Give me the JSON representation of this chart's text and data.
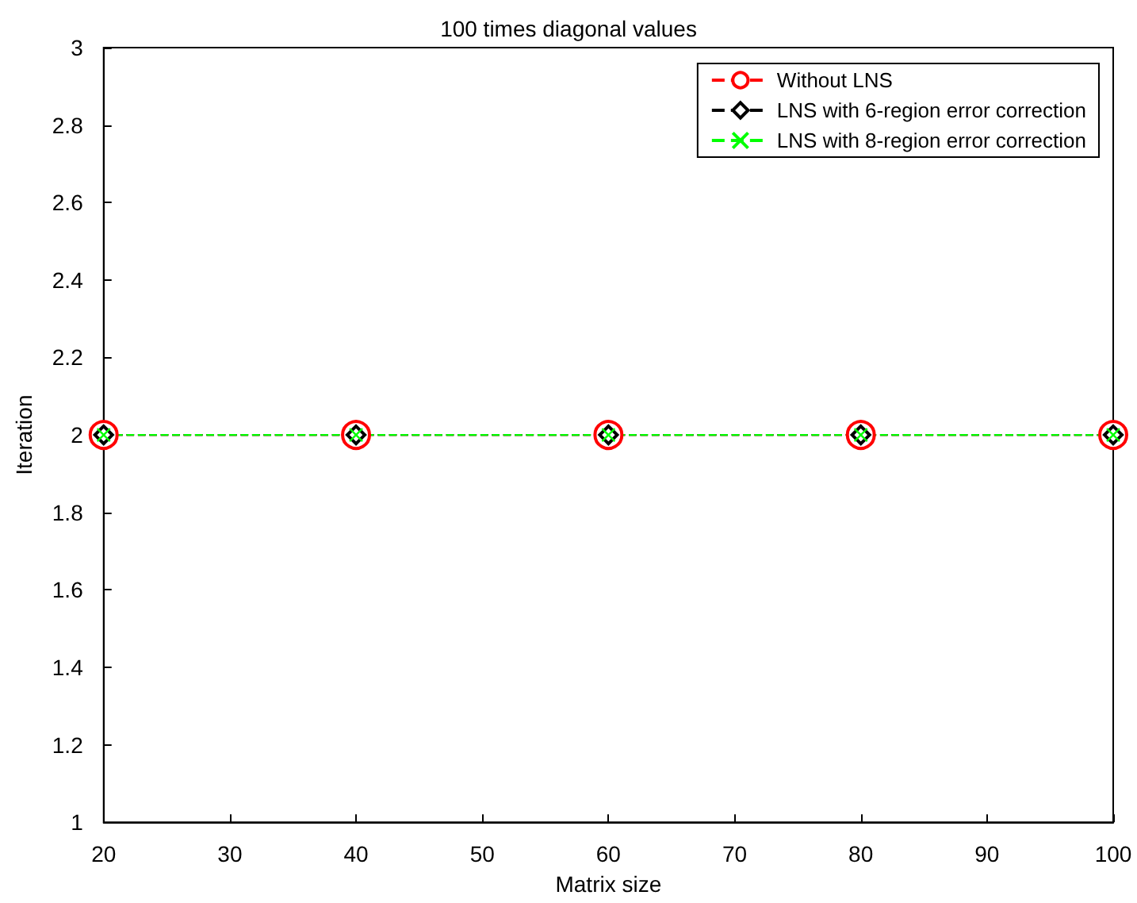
{
  "chart_data": {
    "type": "line",
    "title": "100 times diagonal values",
    "xlabel": "Matrix size",
    "ylabel": "Iteration",
    "x": [
      20,
      40,
      60,
      80,
      100
    ],
    "series": [
      {
        "name": "Without LNS",
        "color": "#ff0000",
        "values": [
          2,
          2,
          2,
          2,
          2
        ],
        "marker": "circle"
      },
      {
        "name": "LNS with 6-region error correction",
        "color": "#000000",
        "values": [
          2,
          2,
          2,
          2,
          2
        ],
        "marker": "diamond"
      },
      {
        "name": "LNS with 8-region error correction",
        "color": "#00ff00",
        "values": [
          2,
          2,
          2,
          2,
          2
        ],
        "marker": "cross"
      }
    ],
    "xlim": [
      20,
      100
    ],
    "xticks": [
      20,
      30,
      40,
      50,
      60,
      70,
      80,
      90,
      100
    ],
    "ylim": [
      1,
      3
    ],
    "yticks": [
      1,
      1.2,
      1.4,
      1.6,
      1.8,
      2,
      2.2,
      2.4,
      2.6,
      2.8,
      3
    ],
    "grid": false,
    "legend": "top right",
    "line_style": "dashed"
  }
}
